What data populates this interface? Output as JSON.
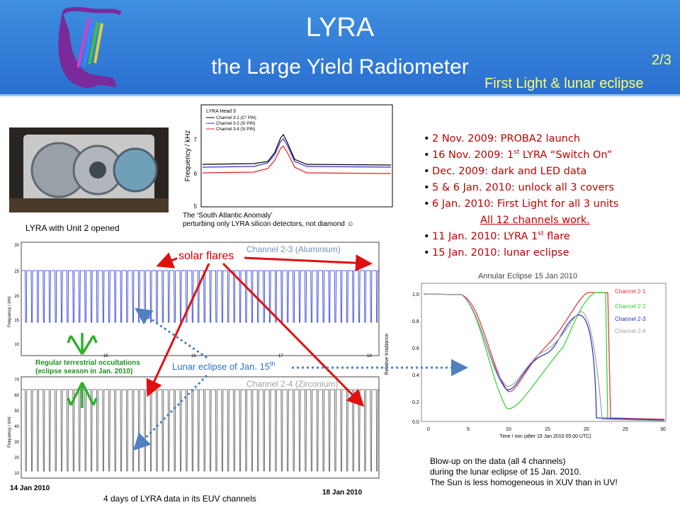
{
  "header": {
    "title": "LYRA",
    "subtitle": "the Large Yield Radiometer",
    "slide_number": "2/3",
    "slide_topic": "First Light & lunar eclipse",
    "logo": "lyra-harp-logo"
  },
  "photo": {
    "caption": "LYRA with Unit 2 opened"
  },
  "saa_plot": {
    "legend_title": "LYRA Head 3",
    "legend": [
      "Channel 3-2 (C* PIN)",
      "Channel 3-3 (Si PIN)",
      "Channel 3-4 (Si PIN)"
    ],
    "ylabel": "Frequency / kHz",
    "yticks": [
      "5",
      "6",
      "7"
    ],
    "caption_line1": "The ‘South Atlantic Anomaly’",
    "caption_line2": "perturbing only LYRA silicon detectors, not diamond ☺",
    "colors": {
      "ch32": "#000000",
      "ch33": "#3030d0",
      "ch34": "#e02020"
    }
  },
  "bullets": {
    "b1": "2 Nov. 2009: PROBA2 launch",
    "b2a": "16 Nov. 2009: 1",
    "b2sup": "st",
    "b2b": " LYRA “Switch On”",
    "b3": "Dec. 2009: dark and LED data",
    "b4": "5 & 6 Jan. 2010:  unlock all 3 covers",
    "b5": "6 Jan. 2010: First Light for all 3 units",
    "b5sub": "All 12 channels work.",
    "b6a": "11 Jan. 2010: LYRA 1",
    "b6sup": "st",
    "b6b": " flare",
    "b7": "15 Jan. 2010: lunar eclipse"
  },
  "timeseries": {
    "top_channel": "Channel 2-3 (Aluminium)",
    "bottom_channel": "Channel 2-4 (Zirconium)",
    "ylabel": "Frequency / kHz",
    "top_yticks": [
      "30",
      "25",
      "20",
      "15",
      "10"
    ],
    "bottom_yticks": [
      "70",
      "60",
      "50",
      "40",
      "30",
      "20",
      "10"
    ],
    "xticks": [
      "15",
      "16",
      "17",
      "18"
    ],
    "start_date": "14 Jan 2010",
    "end_date": "18 Jan 2010",
    "caption": "4 days of LYRA data in its EUV channels",
    "occultation_line1": "Regular terrestrial occultations",
    "occultation_line2": "(eclipse season in Jan. 2010)",
    "lunar_eclipse_a": "Lunar eclipse of Jan. 15",
    "lunar_eclipse_sup": "th",
    "solar_flares": "solar flares"
  },
  "eclipse_plot": {
    "title": "Annular Eclipse 15 Jan 2010",
    "ylabel": "Relative Irradiance",
    "xlabel": "Time / min (after 15 Jan 2010 05:00 UTC)",
    "xticks": [
      "0",
      "5",
      "10",
      "15",
      "20",
      "25",
      "30"
    ],
    "yticks": [
      "1.0",
      "0.8",
      "0.6",
      "0.4",
      "0.2",
      "0.0"
    ],
    "legend": [
      "Channel 2-1",
      "Channel 2-2",
      "Channel 2-3",
      "Channel 2-4"
    ],
    "colors": {
      "ch21": "#e03030",
      "ch22": "#30d030",
      "ch23": "#2030c0",
      "ch24": "#a0a0a0"
    },
    "caption_line1": "Blow-up on the data (all 4 channels)",
    "caption_line2": "during the lunar eclipse of 15 Jan. 2010.",
    "caption_line3": "The Sun is less homogeneous in XUV than in UV!"
  }
}
